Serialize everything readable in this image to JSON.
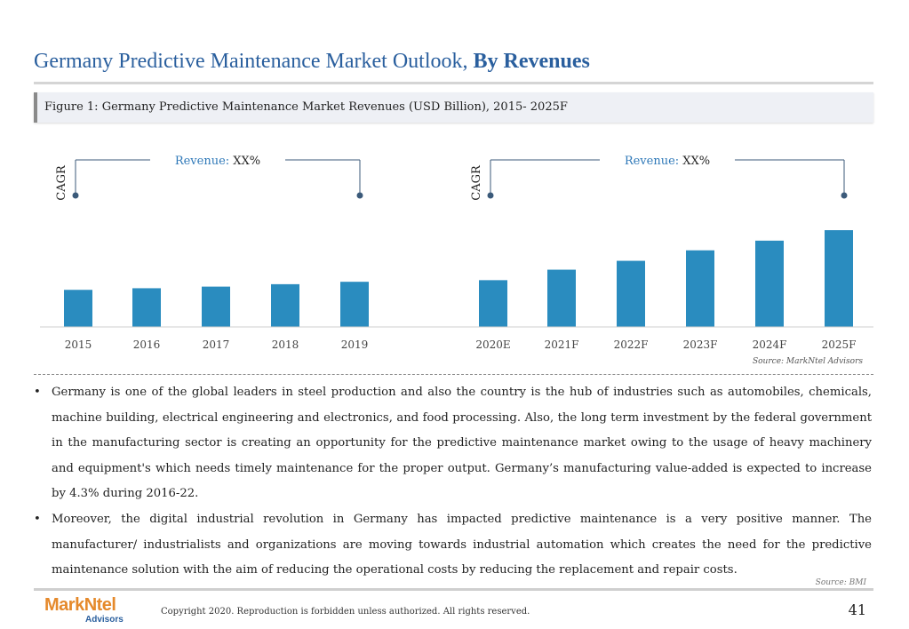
{
  "page": {
    "title_normal": "Germany Predictive Maintenance Market Outlook, ",
    "title_bold": "By Revenues",
    "figure_caption": "Figure 1: Germany Predictive Maintenance Market Revenues (USD Billion), 2015- 2025F",
    "chart_source": "Source: MarkNtel Advisors",
    "bullets": [
      "Germany is one of the global leaders in steel production and also the country is the hub of industries such as automobiles, chemicals, machine building, electrical engineering and electronics, and food processing. Also, the long term investment by the federal government in the manufacturing sector is creating an opportunity for the predictive maintenance market owing to the usage of heavy machinery and equipment's which needs timely maintenance for the proper output. Germany’s manufacturing value-added is expected to increase by 4.3% during 2016-22.",
      "Moreover, the digital industrial revolution in Germany has impacted predictive maintenance is a very positive manner. The manufacturer/ industrialists and organizations are moving towards industrial automation which creates the need for the predictive maintenance solution with the aim of reducing the operational costs by reducing the replacement and repair costs."
    ],
    "bullet_symbol": "•",
    "text_source": "Source: BMI",
    "logo_main": "MarkNtel",
    "logo_sub": "Advisors",
    "copyright": "Copyright 2020. Reproduction is forbidden unless authorized. All rights reserved.",
    "page_number": "41"
  },
  "colors": {
    "bar": "#2a8cbf",
    "title": "#2a5f9e",
    "annotation_line": "#3b5a7a",
    "revenue_label": "#2e78b8"
  },
  "chart_data": {
    "type": "bar",
    "categories": [
      "2015",
      "2016",
      "2017",
      "2018",
      "2019",
      "2020E",
      "2021F",
      "2022F",
      "2023F",
      "2024F",
      "2025F"
    ],
    "values": [
      46,
      48,
      50,
      53,
      56,
      58,
      71,
      82,
      95,
      107,
      120
    ],
    "value_note": "relative bar heights (no value axis printed)",
    "ylim": [
      0,
      130
    ],
    "grid": false,
    "annotations": [
      {
        "label": "Revenue: ",
        "value": "XX%",
        "side_label": "CAGR",
        "from": "2015",
        "to": "2019"
      },
      {
        "label": "Revenue: ",
        "value": "XX%",
        "side_label": "CAGR",
        "from": "2020E",
        "to": "2025F"
      }
    ]
  }
}
